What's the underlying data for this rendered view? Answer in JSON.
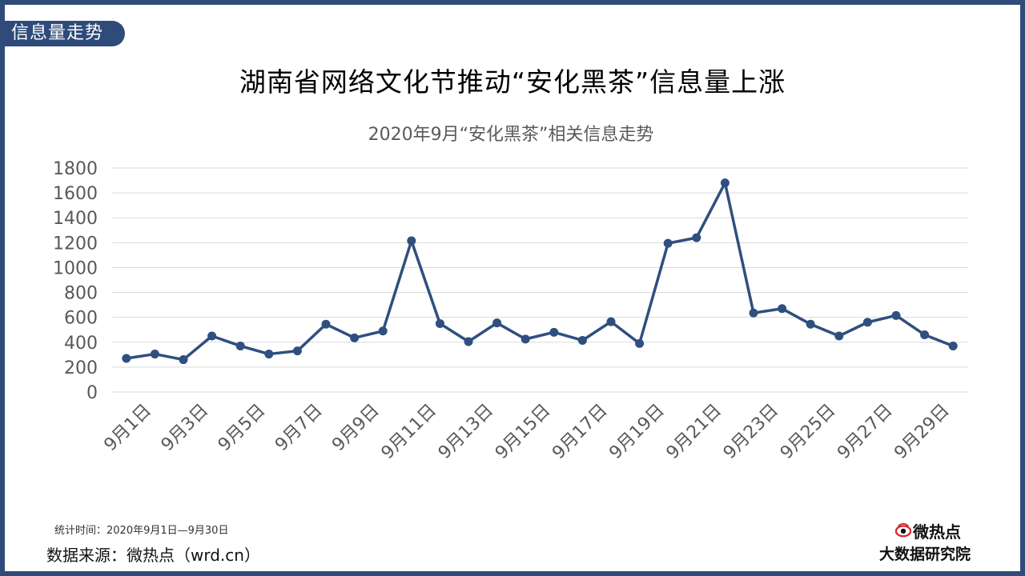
{
  "section_tag": "信息量走势",
  "main_title": "湖南省网络文化节推动“安化黑茶”信息量上涨",
  "footer": {
    "stat_time": "统计时间：2020年9月1日—9月30日",
    "source": "数据来源：微热点（wrd.cn）"
  },
  "logo": {
    "name": "微热点",
    "subtitle": "大数据研究院",
    "icon": "weiredian-eye-logo"
  },
  "colors": {
    "frame": "#2e4b7a",
    "line": "#2f4f7f",
    "grid": "#d9d9d9",
    "axis_text": "#595959",
    "logo_red": "#d7262b"
  },
  "chart_data": {
    "type": "line",
    "title": "2020年9月“安化黑茶”相关信息走势",
    "xlabel": "",
    "ylabel": "",
    "ylim": [
      0,
      1800
    ],
    "y_ticks": [
      0,
      200,
      400,
      600,
      800,
      1000,
      1200,
      1400,
      1600,
      1800
    ],
    "grid": true,
    "legend": "none",
    "categories": [
      "9月1日",
      "9月2日",
      "9月3日",
      "9月4日",
      "9月5日",
      "9月6日",
      "9月7日",
      "9月8日",
      "9月9日",
      "9月10日",
      "9月11日",
      "9月12日",
      "9月13日",
      "9月14日",
      "9月15日",
      "9月16日",
      "9月17日",
      "9月18日",
      "9月19日",
      "9月20日",
      "9月21日",
      "9月22日",
      "9月23日",
      "9月24日",
      "9月25日",
      "9月26日",
      "9月27日",
      "9月28日",
      "9月29日",
      "9月30日"
    ],
    "x_tick_labels": [
      "9月1日",
      "9月3日",
      "9月5日",
      "9月7日",
      "9月9日",
      "9月11日",
      "9月13日",
      "9月15日",
      "9月17日",
      "9月19日",
      "9月21日",
      "9月23日",
      "9月25日",
      "9月27日",
      "9月29日"
    ],
    "series": [
      {
        "values": [
          270,
          305,
          260,
          450,
          370,
          305,
          330,
          545,
          435,
          490,
          1215,
          550,
          405,
          555,
          425,
          480,
          415,
          565,
          390,
          1195,
          1240,
          1680,
          635,
          670,
          545,
          450,
          560,
          615,
          460,
          370
        ]
      }
    ]
  }
}
